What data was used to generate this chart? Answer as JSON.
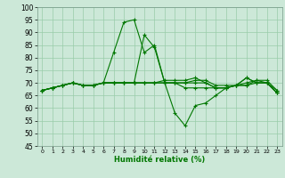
{
  "title": "",
  "xlabel": "Humidité relative (%)",
  "ylabel": "",
  "bg_color": "#cce8d8",
  "grid_color": "#99ccaa",
  "line_color": "#007700",
  "xlim": [
    -0.5,
    23.5
  ],
  "ylim": [
    45,
    100
  ],
  "xticks": [
    0,
    1,
    2,
    3,
    4,
    5,
    6,
    7,
    8,
    9,
    10,
    11,
    12,
    13,
    14,
    15,
    16,
    17,
    18,
    19,
    20,
    21,
    22,
    23
  ],
  "yticks": [
    45,
    50,
    55,
    60,
    65,
    70,
    75,
    80,
    85,
    90,
    95,
    100
  ],
  "series": [
    [
      67,
      68,
      69,
      70,
      69,
      69,
      70,
      82,
      94,
      95,
      82,
      85,
      70,
      70,
      68,
      68,
      68,
      68,
      68,
      69,
      72,
      70,
      70,
      66
    ],
    [
      67,
      68,
      69,
      70,
      69,
      69,
      70,
      70,
      70,
      70,
      89,
      84,
      70,
      58,
      53,
      61,
      62,
      65,
      68,
      69,
      72,
      70,
      70,
      66
    ],
    [
      67,
      68,
      69,
      70,
      69,
      69,
      70,
      70,
      70,
      70,
      70,
      70,
      70,
      70,
      70,
      70,
      70,
      68,
      68,
      69,
      69,
      70,
      70,
      66
    ],
    [
      67,
      68,
      69,
      70,
      69,
      69,
      70,
      70,
      70,
      70,
      70,
      70,
      70,
      70,
      70,
      71,
      71,
      69,
      69,
      69,
      70,
      71,
      70,
      67
    ],
    [
      67,
      68,
      69,
      70,
      69,
      69,
      70,
      70,
      70,
      70,
      70,
      70,
      71,
      71,
      71,
      72,
      70,
      68,
      68,
      69,
      69,
      71,
      71,
      67
    ]
  ]
}
